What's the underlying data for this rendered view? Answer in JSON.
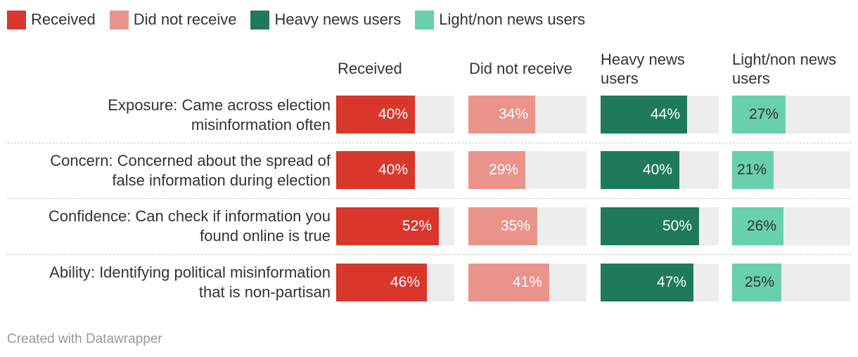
{
  "colors": {
    "received": "#d9372b",
    "did_not_receive": "#ea938b",
    "heavy": "#1f7a5c",
    "light": "#68d0ac",
    "track": "#ededed"
  },
  "legend": [
    {
      "label": "Received",
      "color": "#d9372b"
    },
    {
      "label": "Did not receive",
      "color": "#ea938b"
    },
    {
      "label": "Heavy news users",
      "color": "#1f7a5c"
    },
    {
      "label": "Light/non news users",
      "color": "#68d0ac"
    }
  ],
  "columns": [
    {
      "header_line1": "Received",
      "header_line2": ""
    },
    {
      "header_line1": "Did not receive",
      "header_line2": ""
    },
    {
      "header_line1": "Heavy news",
      "header_line2": "users"
    },
    {
      "header_line1": "Light/non news",
      "header_line2": "users"
    }
  ],
  "rows": [
    {
      "label_line1": "Exposure: Came across election",
      "label_line2": "misinformation often"
    },
    {
      "label_line1": "Concern: Concerned about the spread of",
      "label_line2": "false information during election"
    },
    {
      "label_line1": "Confidence: Can check if information you",
      "label_line2": "found online is true"
    },
    {
      "label_line1": "Ability: Identifying political misinformation",
      "label_line2": "that is non-partisan"
    }
  ],
  "chart_data": {
    "type": "bar",
    "orientation": "horizontal",
    "layout": "small-multiples",
    "xlim": [
      0,
      60
    ],
    "categories": [
      "Exposure: Came across election misinformation often",
      "Concern: Concerned about the spread of false information during election",
      "Confidence: Can check if information you found online is true",
      "Ability: Identifying political misinformation that is non-partisan"
    ],
    "series": [
      {
        "name": "Received",
        "values": [
          40,
          40,
          52,
          46
        ],
        "labels": [
          "40%",
          "40%",
          "52%",
          "46%"
        ],
        "label_color": "#ffffff"
      },
      {
        "name": "Did not receive",
        "values": [
          34,
          29,
          35,
          41
        ],
        "labels": [
          "34%",
          "29%",
          "35%",
          "41%"
        ],
        "label_color": "#ffffff"
      },
      {
        "name": "Heavy news users",
        "values": [
          44,
          40,
          50,
          47
        ],
        "labels": [
          "44%",
          "40%",
          "50%",
          "47%"
        ],
        "label_color": "#ffffff"
      },
      {
        "name": "Light/non news users",
        "values": [
          27,
          21,
          26,
          25
        ],
        "labels": [
          "27%",
          "21%",
          "26%",
          "25%"
        ],
        "label_color": "#333333"
      }
    ],
    "legend_position": "top-left"
  },
  "credit": "Created with Datawrapper"
}
